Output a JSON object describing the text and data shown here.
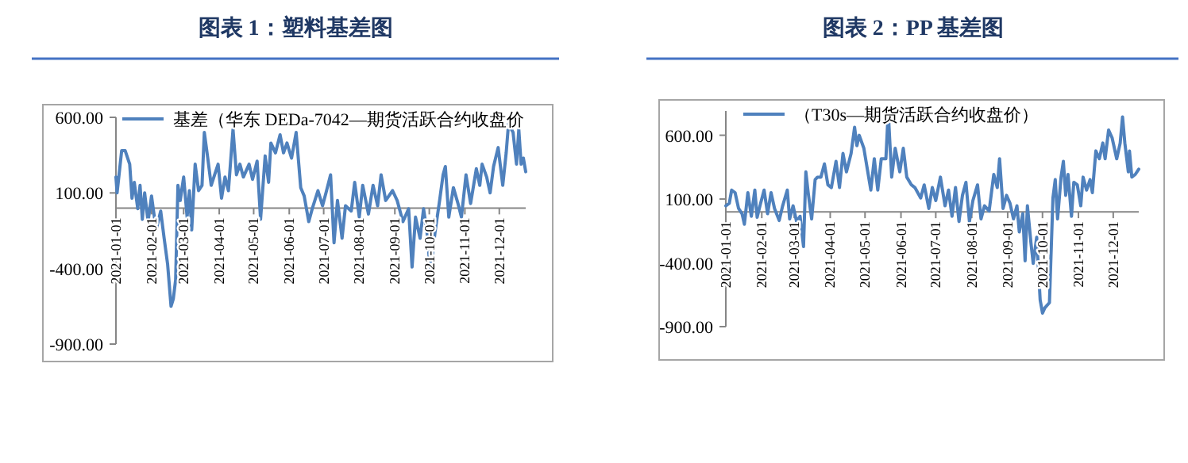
{
  "chart_data": [
    {
      "type": "line",
      "title": "图表 1：塑料基差图",
      "legend": "top",
      "xlim": [
        "2021-01-01",
        "2021-12-24"
      ],
      "ylim": [
        -900,
        600
      ],
      "yticks": [
        {
          "value": 600,
          "label": "600.00"
        },
        {
          "value": 100,
          "label": "100.00"
        },
        {
          "value": -400,
          "label": "-400.00"
        },
        {
          "value": -900,
          "label": "-900.00"
        }
      ],
      "xticks": [
        "2021-01-01",
        "2021-02-01",
        "2021-03-01",
        "2021-04-01",
        "2021-05-01",
        "2021-06-01",
        "2021-07-01",
        "2021-08-01",
        "2021-09-01",
        "2021-10-01",
        "2021-11-01",
        "2021-12-01"
      ],
      "x": [
        "2021-01-01",
        "2021-01-02",
        "2021-01-06",
        "2021-01-09",
        "2021-01-13",
        "2021-01-15",
        "2021-01-17",
        "2021-01-20",
        "2021-01-22",
        "2021-01-24",
        "2021-01-26",
        "2021-01-29",
        "2021-02-01",
        "2021-02-05",
        "2021-02-09",
        "2021-02-12",
        "2021-02-15",
        "2021-02-18",
        "2021-02-20",
        "2021-02-22",
        "2021-02-24",
        "2021-02-26",
        "2021-03-01",
        "2021-03-04",
        "2021-03-06",
        "2021-03-08",
        "2021-03-11",
        "2021-03-14",
        "2021-03-17",
        "2021-03-19",
        "2021-03-22",
        "2021-03-25",
        "2021-03-28",
        "2021-03-31",
        "2021-04-03",
        "2021-04-06",
        "2021-04-09",
        "2021-04-13",
        "2021-04-16",
        "2021-04-19",
        "2021-04-22",
        "2021-04-27",
        "2021-04-30",
        "2021-05-04",
        "2021-05-07",
        "2021-05-11",
        "2021-05-14",
        "2021-05-16",
        "2021-05-20",
        "2021-05-24",
        "2021-05-27",
        "2021-05-30",
        "2021-06-03",
        "2021-06-07",
        "2021-06-11",
        "2021-06-14",
        "2021-06-18",
        "2021-06-21",
        "2021-06-26",
        "2021-06-30",
        "2021-07-03",
        "2021-07-07",
        "2021-07-10",
        "2021-07-13",
        "2021-07-17",
        "2021-07-20",
        "2021-07-25",
        "2021-07-28",
        "2021-08-01",
        "2021-08-04",
        "2021-08-09",
        "2021-08-13",
        "2021-08-17",
        "2021-08-20",
        "2021-08-24",
        "2021-08-30",
        "2021-09-03",
        "2021-09-08",
        "2021-09-13",
        "2021-09-16",
        "2021-09-19",
        "2021-09-23",
        "2021-09-26",
        "2021-09-29",
        "2021-10-02",
        "2021-10-06",
        "2021-10-10",
        "2021-10-13",
        "2021-10-15",
        "2021-10-18",
        "2021-10-22",
        "2021-10-26",
        "2021-10-29",
        "2021-11-02",
        "2021-11-06",
        "2021-11-11",
        "2021-11-14",
        "2021-11-16",
        "2021-11-20",
        "2021-11-23",
        "2021-11-26",
        "2021-11-30",
        "2021-12-04",
        "2021-12-07",
        "2021-12-09",
        "2021-12-13",
        "2021-12-16",
        "2021-12-18",
        "2021-12-20",
        "2021-12-22",
        "2021-12-24"
      ],
      "series": [
        {
          "name": "基差（华东 DEDa-7042—期货活跃合约收盘价",
          "color": "#4f81bd",
          "values": [
            205,
            100,
            380,
            380,
            290,
            65,
            170,
            -5,
            150,
            -75,
            100,
            -90,
            80,
            -145,
            -20,
            -200,
            -370,
            -650,
            -600,
            -475,
            150,
            50,
            205,
            -60,
            115,
            -145,
            290,
            115,
            150,
            500,
            330,
            150,
            220,
            290,
            65,
            205,
            115,
            520,
            220,
            290,
            205,
            290,
            190,
            310,
            -75,
            345,
            170,
            430,
            365,
            485,
            365,
            430,
            330,
            500,
            135,
            80,
            -90,
            -5,
            115,
            15,
            100,
            220,
            -230,
            50,
            -200,
            15,
            -20,
            170,
            -60,
            150,
            -40,
            150,
            15,
            220,
            50,
            115,
            50,
            -90,
            -5,
            -390,
            -60,
            -200,
            -5,
            -160,
            -425,
            -160,
            50,
            220,
            275,
            -60,
            135,
            30,
            -60,
            220,
            30,
            260,
            150,
            290,
            205,
            100,
            275,
            400,
            150,
            365,
            555,
            500,
            290,
            520,
            290,
            330,
            240
          ]
        }
      ]
    },
    {
      "type": "line",
      "title": "图表 2：PP 基差图",
      "legend": "top",
      "xlim": [
        "2021-01-01",
        "2021-12-23"
      ],
      "ylim": [
        -900,
        790
      ],
      "yticks": [
        {
          "value": 600,
          "label": "600.00"
        },
        {
          "value": 100,
          "label": "100.00"
        },
        {
          "value": -400,
          "label": "-400.00"
        },
        {
          "value": -900,
          "label": "-900.00"
        }
      ],
      "xticks": [
        "2021-01-01",
        "2021-02-01",
        "2021-03-01",
        "2021-04-01",
        "2021-05-01",
        "2021-06-01",
        "2021-07-01",
        "2021-08-01",
        "2021-09-01",
        "2021-10-01",
        "2021-11-01",
        "2021-12-01"
      ],
      "x": [
        "2021-01-01",
        "2021-01-04",
        "2021-01-06",
        "2021-01-09",
        "2021-01-12",
        "2021-01-15",
        "2021-01-17",
        "2021-01-20",
        "2021-01-23",
        "2021-01-26",
        "2021-01-28",
        "2021-01-31",
        "2021-02-03",
        "2021-02-06",
        "2021-02-09",
        "2021-02-12",
        "2021-02-16",
        "2021-02-19",
        "2021-02-23",
        "2021-02-25",
        "2021-02-28",
        "2021-03-03",
        "2021-03-06",
        "2021-03-09",
        "2021-03-11",
        "2021-03-13",
        "2021-03-16",
        "2021-03-19",
        "2021-03-21",
        "2021-03-24",
        "2021-03-27",
        "2021-03-30",
        "2021-04-02",
        "2021-04-06",
        "2021-04-09",
        "2021-04-12",
        "2021-04-15",
        "2021-04-19",
        "2021-04-22",
        "2021-04-24",
        "2021-04-26",
        "2021-04-30",
        "2021-05-03",
        "2021-05-06",
        "2021-05-09",
        "2021-05-12",
        "2021-05-15",
        "2021-05-19",
        "2021-05-21",
        "2021-05-24",
        "2021-05-27",
        "2021-05-31",
        "2021-06-03",
        "2021-06-06",
        "2021-06-10",
        "2021-06-13",
        "2021-06-18",
        "2021-06-21",
        "2021-06-25",
        "2021-06-28",
        "2021-07-01",
        "2021-07-05",
        "2021-07-09",
        "2021-07-12",
        "2021-07-15",
        "2021-07-18",
        "2021-07-21",
        "2021-07-24",
        "2021-07-27",
        "2021-07-30",
        "2021-08-02",
        "2021-08-06",
        "2021-08-09",
        "2021-08-12",
        "2021-08-16",
        "2021-08-20",
        "2021-08-23",
        "2021-08-25",
        "2021-08-28",
        "2021-08-31",
        "2021-09-03",
        "2021-09-06",
        "2021-09-09",
        "2021-09-11",
        "2021-09-14",
        "2021-09-16",
        "2021-09-18",
        "2021-09-21",
        "2021-09-23",
        "2021-09-26",
        "2021-09-29",
        "2021-10-01",
        "2021-10-03",
        "2021-10-07",
        "2021-10-10",
        "2021-10-12",
        "2021-10-14",
        "2021-10-17",
        "2021-10-19",
        "2021-10-21",
        "2021-10-23",
        "2021-10-26",
        "2021-10-28",
        "2021-10-31",
        "2021-11-03",
        "2021-11-05",
        "2021-11-08",
        "2021-11-11",
        "2021-11-13",
        "2021-11-16",
        "2021-11-19",
        "2021-11-22",
        "2021-11-24",
        "2021-11-27",
        "2021-11-30",
        "2021-12-04",
        "2021-12-07",
        "2021-12-09",
        "2021-12-11",
        "2021-12-14",
        "2021-12-15",
        "2021-12-17",
        "2021-12-20",
        "2021-12-23"
      ],
      "series": [
        {
          "name": "（T30s—期货活跃合约收盘价）",
          "color": "#4f81bd",
          "values": [
            47,
            67,
            170,
            150,
            26,
            -15,
            -97,
            150,
            -35,
            170,
            -43,
            67,
            170,
            -15,
            150,
            26,
            -68,
            47,
            170,
            -56,
            47,
            -76,
            -35,
            -273,
            313,
            150,
            -56,
            252,
            272,
            272,
            375,
            211,
            190,
            395,
            190,
            457,
            313,
            457,
            662,
            518,
            600,
            498,
            334,
            170,
            416,
            170,
            416,
            416,
            785,
            272,
            498,
            313,
            498,
            272,
            211,
            190,
            108,
            211,
            26,
            190,
            88,
            272,
            47,
            170,
            -35,
            190,
            -76,
            129,
            231,
            -76,
            88,
            211,
            -56,
            47,
            6,
            293,
            190,
            416,
            26,
            129,
            67,
            -56,
            47,
            -158,
            -15,
            -384,
            47,
            -240,
            -405,
            -199,
            -691,
            -794,
            -753,
            -712,
            108,
            252,
            -56,
            272,
            395,
            129,
            293,
            -35,
            231,
            211,
            47,
            272,
            170,
            252,
            150,
            477,
            416,
            539,
            416,
            641,
            580,
            416,
            539,
            744,
            539,
            313,
            477,
            272,
            293,
            334
          ]
        }
      ]
    }
  ]
}
